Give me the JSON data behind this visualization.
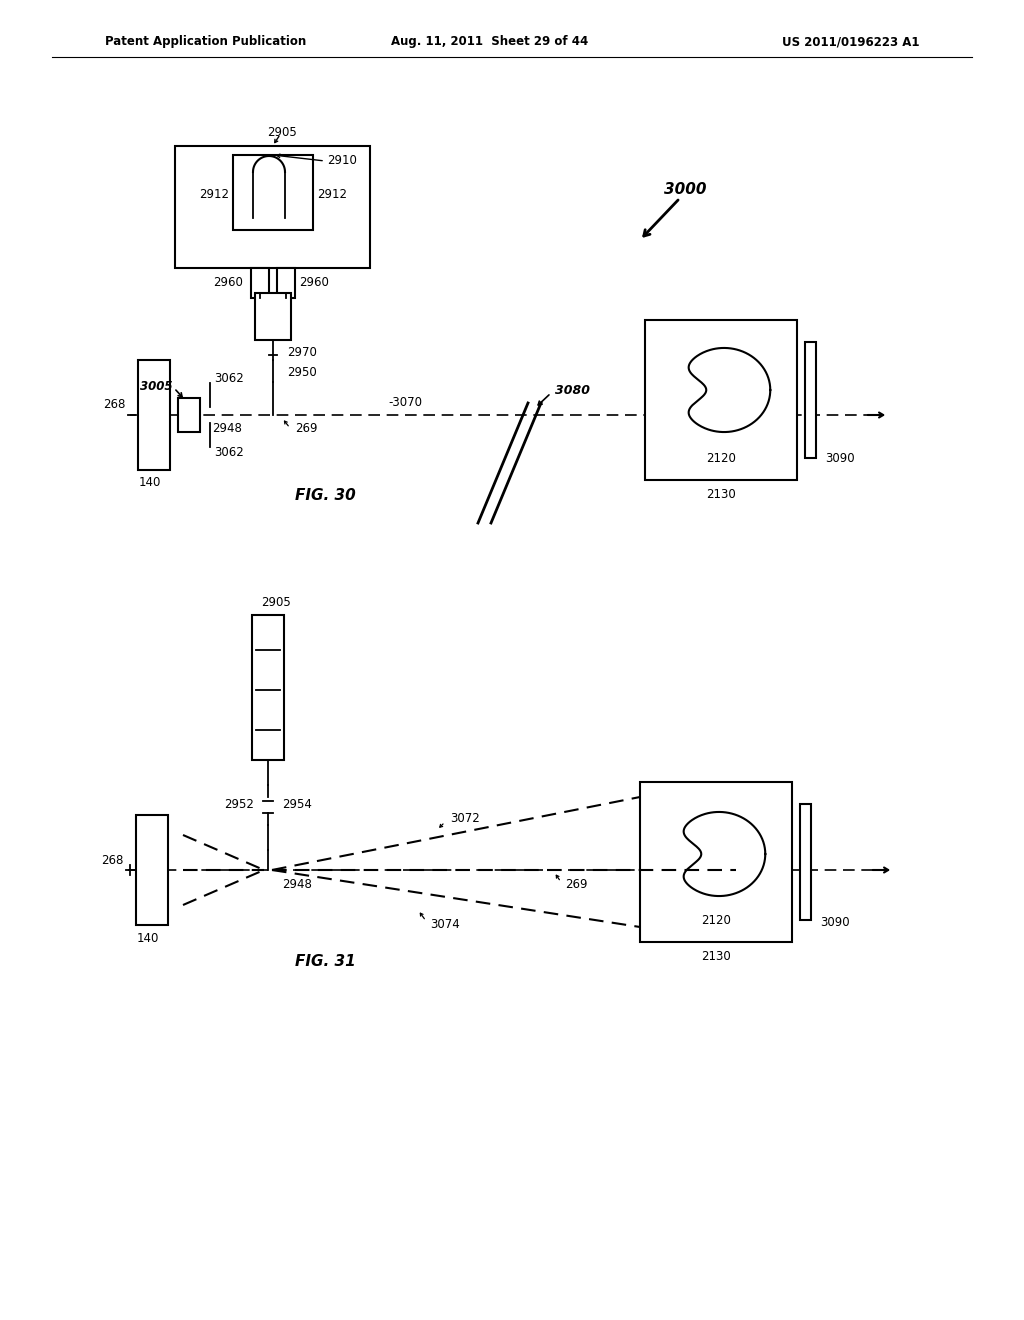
{
  "header_left": "Patent Application Publication",
  "header_mid": "Aug. 11, 2011  Sheet 29 of 44",
  "header_right": "US 2011/0196223 A1",
  "bg_color": "#ffffff",
  "line_color": "#000000"
}
